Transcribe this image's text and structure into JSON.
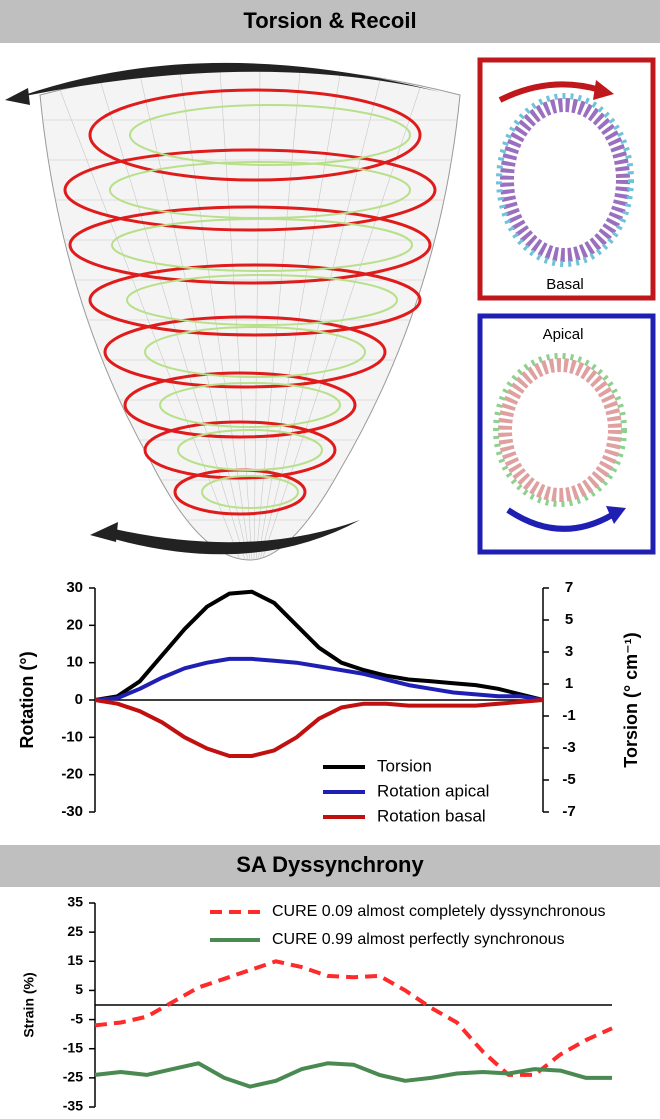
{
  "headers": [
    "Torsion & Recoil",
    "SA Dyssynchrony"
  ],
  "illustration": {
    "basal_label": "Basal",
    "apical_label": "Apical"
  },
  "chart_data": [
    {
      "type": "line",
      "ylabel": "Rotation (°)",
      "y2label": "Torsion (° cm⁻¹)",
      "x": [
        0,
        1,
        2,
        3,
        4,
        5,
        6,
        7,
        8,
        9,
        10,
        11,
        12,
        13,
        14,
        15,
        16,
        17,
        18,
        19,
        20
      ],
      "xlim": [
        0,
        20
      ],
      "ylim": [
        -30,
        30
      ],
      "yticks": [
        30,
        20,
        10,
        0,
        -10,
        -20,
        -30
      ],
      "y2lim": [
        -7,
        7
      ],
      "y2ticks": [
        7,
        5,
        3,
        1,
        -1,
        -3,
        -5,
        -7
      ],
      "series": [
        {
          "name": "Torsion",
          "color": "#000000",
          "axis": "y2",
          "values": [
            0,
            0.23,
            1.17,
            2.8,
            4.43,
            5.83,
            6.65,
            6.77,
            6.07,
            4.67,
            3.27,
            2.33,
            1.87,
            1.52,
            1.28,
            1.17,
            1.05,
            0.93,
            0.7,
            0.35,
            0
          ]
        },
        {
          "name": "Rotation apical",
          "color": "#1f1fb4",
          "values": [
            0,
            0.5,
            3,
            6,
            8.5,
            10,
            11,
            11,
            10.5,
            10,
            9,
            8,
            7,
            5.5,
            4,
            3,
            2,
            1.5,
            1,
            1,
            0
          ]
        },
        {
          "name": "Rotation basal",
          "color": "#c01010",
          "values": [
            0,
            -1,
            -3,
            -6,
            -10,
            -13,
            -15,
            -15,
            -13.5,
            -10,
            -5,
            -2,
            -1,
            -1,
            -1.5,
            -1.5,
            -1.5,
            -1.5,
            -1,
            -0.5,
            0
          ]
        }
      ]
    },
    {
      "type": "line",
      "ylabel": "Strain (%)",
      "x": [
        0,
        1,
        2,
        3,
        4,
        5,
        6,
        7,
        8,
        9,
        10,
        11,
        12,
        13,
        14,
        15,
        16,
        17,
        18,
        19,
        20
      ],
      "xlim": [
        0,
        20
      ],
      "ylim": [
        -35,
        35
      ],
      "yticks": [
        35,
        25,
        15,
        5,
        -5,
        -15,
        -25,
        -35
      ],
      "series": [
        {
          "name": "CURE 0.09 almost completely dyssynchronous",
          "color": "#ff2a2a",
          "dashed": true,
          "values": [
            -7,
            -6,
            -4,
            1,
            6,
            9,
            12,
            15,
            13,
            10,
            9.5,
            10,
            5,
            -1,
            -6,
            -16,
            -24,
            -24,
            -17,
            -12,
            -8
          ]
        },
        {
          "name": "CURE 0.99 almost perfectly synchronous",
          "color": "#4a8a52",
          "values": [
            -24,
            -23,
            -24,
            -22,
            -20,
            -25,
            -28,
            -26,
            -22,
            -20,
            -20.5,
            -24,
            -26,
            -25,
            -23.5,
            -23,
            -23.5,
            -22,
            -22.5,
            -25,
            -25
          ]
        }
      ]
    }
  ]
}
